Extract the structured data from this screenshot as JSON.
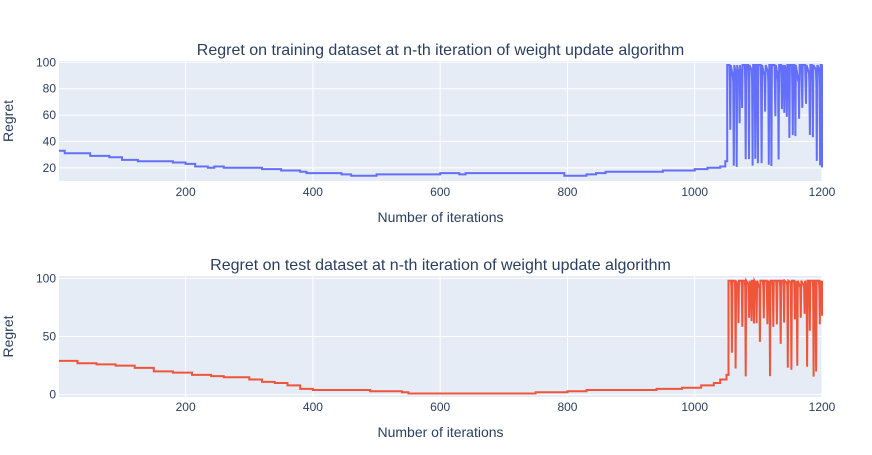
{
  "chart_data": [
    {
      "type": "line",
      "title": "Regret on training dataset at n-th iteration of weight update algorithm",
      "xlabel": "Number of iterations",
      "ylabel": "Regret",
      "xlim": [
        1,
        1200
      ],
      "ylim": [
        10,
        101
      ],
      "x_ticks": [
        200,
        400,
        600,
        800,
        1000,
        1200
      ],
      "y_ticks": [
        20,
        40,
        60,
        80,
        100
      ],
      "grid": true,
      "series": [
        {
          "color": "#636efa",
          "steps": [
            [
              1,
              33
            ],
            [
              10,
              31
            ],
            [
              50,
              29
            ],
            [
              80,
              28
            ],
            [
              100,
              26
            ],
            [
              125,
              25
            ],
            [
              180,
              24
            ],
            [
              200,
              23
            ],
            [
              215,
              21
            ],
            [
              235,
              20
            ],
            [
              245,
              21
            ],
            [
              260,
              20
            ],
            [
              320,
              19
            ],
            [
              350,
              18
            ],
            [
              380,
              17
            ],
            [
              390,
              16
            ],
            [
              430,
              16
            ],
            [
              445,
              15
            ],
            [
              460,
              14
            ],
            [
              500,
              15
            ],
            [
              600,
              16
            ],
            [
              630,
              15
            ],
            [
              640,
              16
            ],
            [
              700,
              16
            ],
            [
              795,
              14
            ],
            [
              830,
              15
            ],
            [
              845,
              16
            ],
            [
              860,
              17
            ],
            [
              950,
              18
            ],
            [
              1000,
              19
            ],
            [
              1020,
              20
            ],
            [
              1040,
              21
            ],
            [
              1048,
              25
            ]
          ],
          "oscillation": {
            "start": 1051,
            "end": 1200,
            "high": 98,
            "low": 20,
            "mid": 85,
            "low_min": 20,
            "low_max": 70
          }
        }
      ]
    },
    {
      "type": "line",
      "title": "Regret on test dataset at n-th iteration of weight update algorithm",
      "xlabel": "Number of iterations",
      "ylabel": "Regret",
      "xlim": [
        1,
        1200
      ],
      "ylim": [
        -2,
        102
      ],
      "x_ticks": [
        200,
        400,
        600,
        800,
        1000,
        1200
      ],
      "y_ticks": [
        0,
        50,
        100
      ],
      "grid": true,
      "series": [
        {
          "color": "#ef553b",
          "steps": [
            [
              1,
              29
            ],
            [
              30,
              27
            ],
            [
              60,
              26
            ],
            [
              90,
              25
            ],
            [
              120,
              23
            ],
            [
              150,
              20
            ],
            [
              180,
              19
            ],
            [
              210,
              17
            ],
            [
              240,
              16
            ],
            [
              260,
              15
            ],
            [
              300,
              13
            ],
            [
              320,
              11
            ],
            [
              340,
              10
            ],
            [
              360,
              8
            ],
            [
              380,
              5
            ],
            [
              400,
              4
            ],
            [
              490,
              3
            ],
            [
              540,
              2
            ],
            [
              550,
              1
            ],
            [
              620,
              1
            ],
            [
              750,
              2
            ],
            [
              800,
              3
            ],
            [
              830,
              4
            ],
            [
              940,
              5
            ],
            [
              980,
              6
            ],
            [
              1010,
              8
            ],
            [
              1030,
              10
            ],
            [
              1040,
              13
            ],
            [
              1050,
              17
            ]
          ],
          "oscillation": {
            "start": 1053,
            "end": 1200,
            "high": 98,
            "low": 17,
            "mid": 92,
            "low_min": 15,
            "low_max": 70
          }
        }
      ]
    }
  ]
}
